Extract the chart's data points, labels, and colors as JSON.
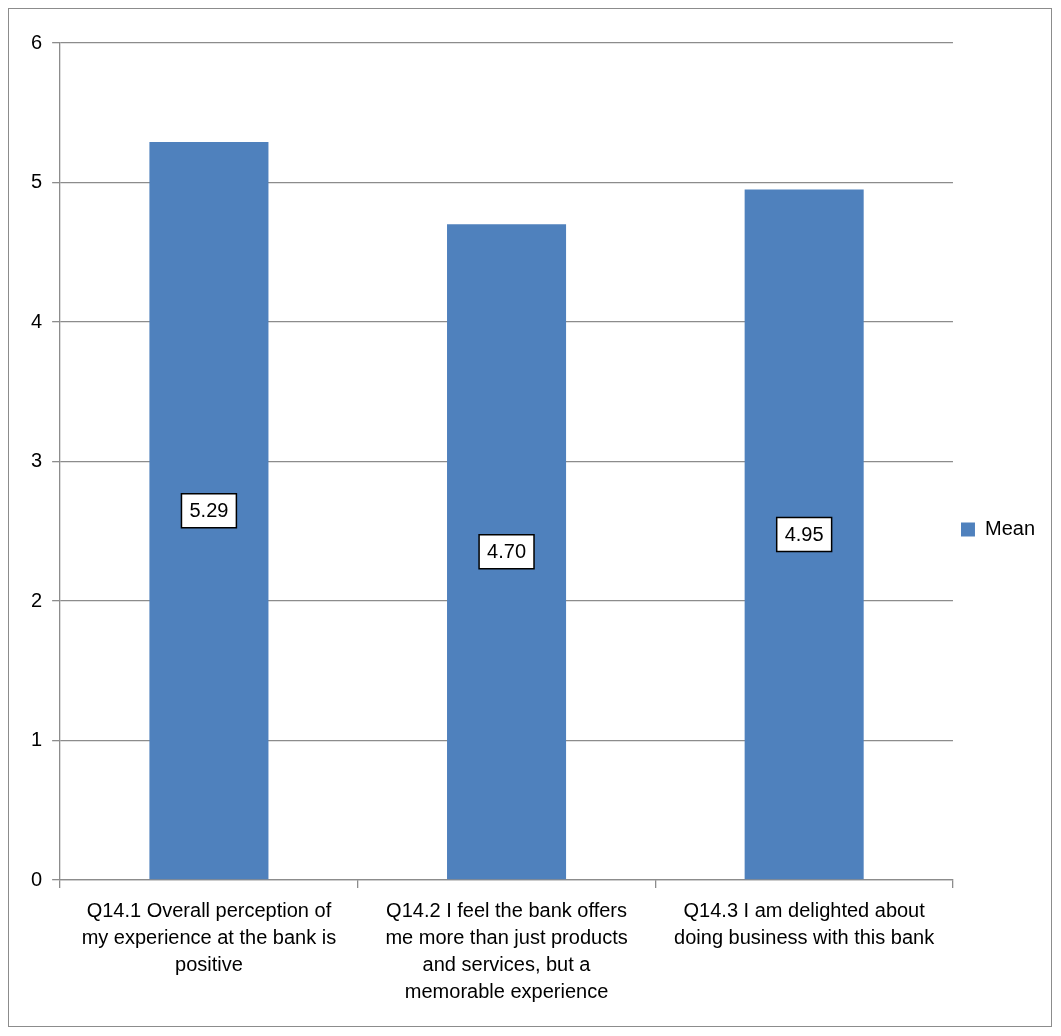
{
  "chart_data": {
    "type": "bar",
    "categories": [
      "Q14.1 Overall perception of my experience at the bank is positive",
      "Q14.2 I feel the bank offers me more than just products and services, but a memorable experience",
      "Q14.3 I am delighted about doing business with this bank"
    ],
    "series": [
      {
        "name": "Mean",
        "color": "#4f81bd",
        "values": [
          5.29,
          4.7,
          4.95
        ],
        "value_labels": [
          "5.29",
          "4.70",
          "4.95"
        ]
      }
    ],
    "ylim": [
      0,
      6
    ],
    "yticks": [
      0,
      1,
      2,
      3,
      4,
      5,
      6
    ],
    "grid": "y",
    "legend": "right"
  }
}
